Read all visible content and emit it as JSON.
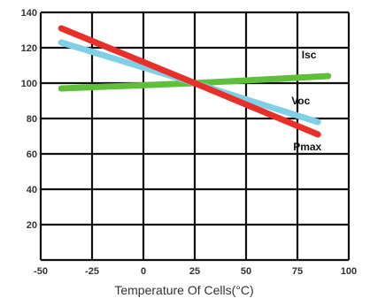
{
  "chart_data": {
    "type": "line",
    "title": "",
    "xlabel": "Temperature Of Cells(°C)",
    "ylabel": "",
    "xlim": [
      -50,
      100
    ],
    "ylim": [
      0,
      140
    ],
    "x_ticks": [
      -50,
      -25,
      0,
      25,
      50,
      75,
      100
    ],
    "x_tick_labels": [
      "-50",
      "-25",
      "0",
      "25",
      "50",
      "75",
      "100"
    ],
    "y_ticks": [
      0,
      20,
      40,
      60,
      80,
      100,
      120,
      140
    ],
    "y_tick_labels": [
      "",
      "20",
      "40",
      "60",
      "80",
      "100",
      "120",
      "140"
    ],
    "grid": true,
    "series": [
      {
        "name": "Isc",
        "color": "#5fbf3a",
        "x": [
          -40,
          25,
          90
        ],
        "y": [
          97,
          100,
          104
        ]
      },
      {
        "name": "Voc",
        "color": "#7fcfe6",
        "x": [
          -40,
          25,
          85
        ],
        "y": [
          123,
          100,
          78
        ]
      },
      {
        "name": "Pmax",
        "color": "#e8302a",
        "x": [
          -40,
          25,
          85
        ],
        "y": [
          131,
          100,
          71
        ]
      }
    ]
  }
}
